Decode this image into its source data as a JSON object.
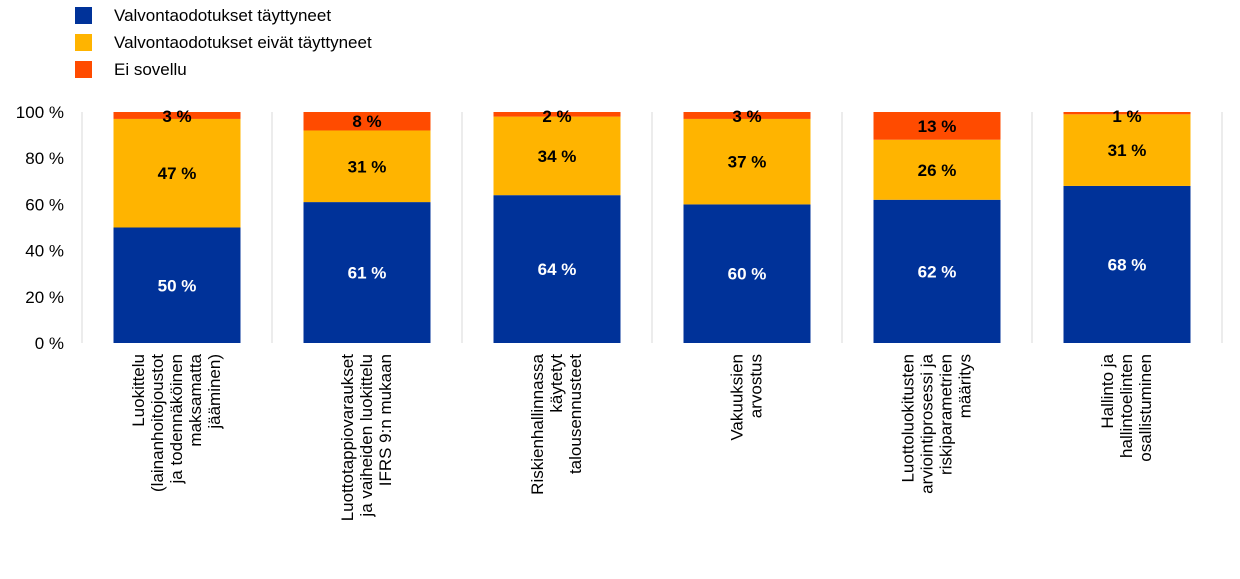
{
  "chart_data": {
    "type": "bar",
    "stacked": true,
    "title": "",
    "xlabel": "",
    "ylabel": "",
    "ylim": [
      0,
      100
    ],
    "y_ticks": [
      "0 %",
      "20 %",
      "40 %",
      "60 %",
      "80 %",
      "100 %"
    ],
    "grid": "vertical separators between categories",
    "legend_position": "top-left",
    "categories": [
      [
        "Luokittelu",
        "(lainanhoitojoustot",
        "ja todennäköinen",
        "maksamatta",
        "jääminen)"
      ],
      [
        "Luottotappiovaraukset",
        "ja vaiheiden luokittelu",
        "IFRS 9:n mukaan"
      ],
      [
        "Riskienhallinnassa",
        "käytetyt",
        "talousennusteet"
      ],
      [
        "Vakuuksien",
        "arvostus"
      ],
      [
        "Luottoluokitusten",
        "arviointiprosessi ja",
        "riskiparametrien",
        "määritys"
      ],
      [
        "Hallinto ja",
        "hallintoelinten",
        "osallistuminen"
      ]
    ],
    "series": [
      {
        "name": "Valvontaodotukset täyttyneet",
        "color": "#003299",
        "values": [
          50,
          61,
          64,
          60,
          62,
          68
        ],
        "labels": [
          "50 %",
          "61 %",
          "64 %",
          "60 %",
          "62 %",
          "68 %"
        ],
        "label_color": "#ffffff"
      },
      {
        "name": "Valvontaodotukset eivät täyttyneet",
        "color": "#ffb400",
        "values": [
          47,
          31,
          34,
          37,
          26,
          31
        ],
        "labels": [
          "47 %",
          "31 %",
          "34 %",
          "37 %",
          "26 %",
          "31 %"
        ],
        "label_color": "#000000"
      },
      {
        "name": "Ei sovellu",
        "color": "#ff4b00",
        "values": [
          3,
          8,
          2,
          3,
          13,
          1
        ],
        "labels": [
          "3 %",
          "8 %",
          "2 %",
          "3 %",
          "13 %",
          "1 %"
        ],
        "label_color": "#000000"
      }
    ]
  }
}
